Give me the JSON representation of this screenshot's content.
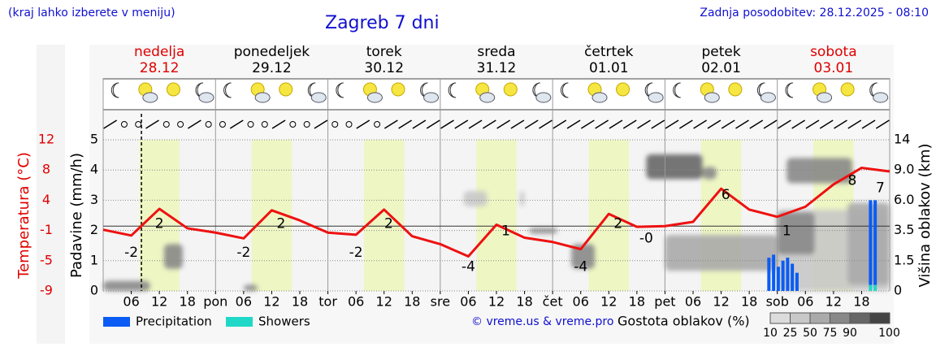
{
  "header": {
    "left_note": "(kraj lahko izberete v meniju)",
    "updated": "Zadnja posodobitev: 28.12.2025 - 08:10",
    "credit": "© vreme.us & vreme.pro"
  },
  "chart_data": {
    "type": "meteogram",
    "title": "Zagreb 7 dni",
    "days": [
      {
        "name": "nedelja",
        "date": "28.12",
        "color": "#e00000"
      },
      {
        "name": "ponedeljek",
        "date": "29.12",
        "color": "#000000"
      },
      {
        "name": "torek",
        "date": "30.12",
        "color": "#000000"
      },
      {
        "name": "sreda",
        "date": "31.12",
        "color": "#000000"
      },
      {
        "name": "četrtek",
        "date": "01.01",
        "color": "#000000"
      },
      {
        "name": "petek",
        "date": "02.01",
        "color": "#000000"
      },
      {
        "name": "sobota",
        "date": "03.01",
        "color": "#e00000"
      }
    ],
    "xlim": [
      0,
      168
    ],
    "xticks": [
      {
        "value": 6,
        "label": "06"
      },
      12,
      18,
      {
        "value": 24,
        "label": "pon"
      },
      {
        "value": 30,
        "label": "06"
      },
      {
        "value": 36,
        "label": "12"
      },
      {
        "value": 42,
        "label": "18"
      },
      {
        "value": 48,
        "label": "tor"
      },
      {
        "value": 54,
        "label": "06"
      },
      {
        "value": 60,
        "label": "12"
      },
      {
        "value": 66,
        "label": "18"
      },
      {
        "value": 72,
        "label": "sre"
      },
      {
        "value": 78,
        "label": "06"
      },
      {
        "value": 84,
        "label": "12"
      },
      {
        "value": 90,
        "label": "18"
      },
      {
        "value": 96,
        "label": "čet"
      },
      {
        "value": 102,
        "label": "06"
      },
      {
        "value": 108,
        "label": "12"
      },
      {
        "value": 114,
        "label": "18"
      },
      {
        "value": 120,
        "label": "pet"
      },
      {
        "value": 126,
        "label": "06"
      },
      {
        "value": 132,
        "label": "12"
      },
      {
        "value": 138,
        "label": "18"
      },
      {
        "value": 144,
        "label": "sob"
      },
      {
        "value": 150,
        "label": "06"
      },
      {
        "value": 156,
        "label": "12"
      },
      {
        "value": 162,
        "label": "18"
      }
    ],
    "ylabel": "Padavine (mm/h)",
    "ylim": [
      0,
      5
    ],
    "yticks": [
      0,
      1,
      2,
      3,
      4,
      5
    ],
    "temp_label": "Temperatura (°C)",
    "temp_lim": [
      -9,
      12
    ],
    "temp_ticks": [
      -9,
      {
        "value": -4.8,
        "label": "-5"
      },
      {
        "value": -0.6,
        "label": "-1"
      },
      {
        "value": 3.6,
        "label": "4"
      },
      {
        "value": 7.8,
        "label": "8"
      },
      12
    ],
    "y2label": "Višina oblakov (km)",
    "y2ticks": [
      0,
      1.5,
      3.5,
      {
        "value": 6,
        "label": "6.0"
      },
      {
        "value": 9,
        "label": "9.0"
      },
      14
    ],
    "now_hour": 8.17,
    "daylight": [
      7.7,
      16.3
    ],
    "temperature": {
      "color": "#ee1111",
      "x": [
        0,
        6,
        12,
        18,
        24,
        30,
        36,
        42,
        48,
        54,
        60,
        66,
        72,
        78,
        84,
        90,
        96,
        102,
        108,
        114,
        120,
        126,
        132,
        138,
        144,
        150,
        156,
        162,
        168
      ],
      "values": [
        -0.5,
        -1.3,
        2.4,
        -0.3,
        -0.9,
        -1.7,
        2.2,
        0.8,
        -0.9,
        -1.2,
        2.3,
        -1.4,
        -2.5,
        -4.2,
        0.2,
        -1.6,
        -2.2,
        -3.2,
        1.7,
        -0.1,
        0,
        0.6,
        5.2,
        2.3,
        1.3,
        2.7,
        5.8,
        8.1,
        7.6
      ]
    },
    "temp_extremes": {
      "x": [
        6,
        12,
        30,
        38,
        54,
        61,
        78,
        86,
        102,
        110,
        116,
        133,
        146,
        160,
        166
      ],
      "values": [
        -2,
        2,
        -2,
        2,
        -2,
        2,
        -4,
        1,
        -4,
        2,
        0,
        6,
        1,
        8,
        7
      ],
      "value_labels": [
        "-2",
        "2",
        "-2",
        "2",
        "-2",
        "2",
        "-4",
        "1",
        "-4",
        "2",
        "-0",
        "6",
        "1",
        "8",
        "7"
      ]
    },
    "series": [
      {
        "name": "Precipitation",
        "color": "#0a5cf5",
        "x": [
          142.2,
          143.2,
          144.2,
          145.2,
          146.2,
          147.2,
          148.2,
          163.9,
          164.9
        ],
        "values": [
          1.1,
          1.2,
          0.8,
          1.0,
          1.1,
          0.9,
          0.6,
          2.8,
          2.8
        ]
      },
      {
        "name": "Showers",
        "color": "#20d8c8",
        "x": [
          163.9,
          164.9
        ],
        "values": [
          0.2,
          0.2
        ]
      }
    ],
    "cloud_label": "Gostota oblakov (%)",
    "cloud_scale": [
      10,
      25,
      50,
      75,
      90,
      100
    ],
    "clouds": [
      {
        "x": [
          0,
          10
        ],
        "km": [
          0,
          0.5
        ],
        "density": 75
      },
      {
        "x": [
          13,
          17
        ],
        "km": [
          1.1,
          2.6
        ],
        "density": 60
      },
      {
        "x": [
          30,
          33
        ],
        "km": [
          0,
          0.3
        ],
        "density": 60
      },
      {
        "x": [
          77,
          82
        ],
        "km": [
          5.5,
          6.9
        ],
        "density": 25
      },
      {
        "x": [
          89,
          90
        ],
        "km": [
          5.5,
          6.9
        ],
        "density": 25
      },
      {
        "x": [
          91,
          97
        ],
        "km": [
          3.3,
          3.7
        ],
        "density": 60
      },
      {
        "x": [
          100,
          105
        ],
        "km": [
          1.1,
          2.6
        ],
        "density": 70
      },
      {
        "x": [
          120,
          144
        ],
        "km": [
          1,
          3.2
        ],
        "density": 35
      },
      {
        "x": [
          116,
          128
        ],
        "km": [
          8.1,
          11.6
        ],
        "density": 80
      },
      {
        "x": [
          128,
          131
        ],
        "km": [
          8.1,
          9.5
        ],
        "density": 60
      },
      {
        "x": [
          144,
          168
        ],
        "km": [
          0,
          5.2
        ],
        "density": 25
      },
      {
        "x": [
          144,
          152
        ],
        "km": [
          1.9,
          5
        ],
        "density": 75
      },
      {
        "x": [
          146,
          160
        ],
        "km": [
          7.7,
          11
        ],
        "density": 70
      },
      {
        "x": [
          159,
          168
        ],
        "km": [
          0.3,
          5.8
        ],
        "density": 45
      }
    ]
  }
}
